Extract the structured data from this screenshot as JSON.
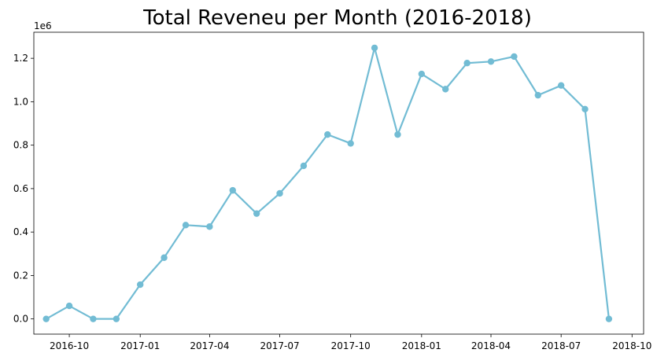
{
  "chart_data": {
    "type": "line",
    "title": "Total Reveneu per Month (2016-2018)",
    "xlabel": "",
    "ylabel": "",
    "y_offset_label": "1e6",
    "x_axis_type": "date",
    "xlim": [
      "2016-08-16",
      "2018-10-16"
    ],
    "ylim": [
      -70000,
      1320000
    ],
    "x_ticks": [
      {
        "date": "2016-10-01",
        "label": "2016-10"
      },
      {
        "date": "2017-01-01",
        "label": "2017-01"
      },
      {
        "date": "2017-04-01",
        "label": "2017-04"
      },
      {
        "date": "2017-07-01",
        "label": "2017-07"
      },
      {
        "date": "2017-10-01",
        "label": "2017-10"
      },
      {
        "date": "2018-01-01",
        "label": "2018-01"
      },
      {
        "date": "2018-04-01",
        "label": "2018-04"
      },
      {
        "date": "2018-07-01",
        "label": "2018-07"
      },
      {
        "date": "2018-10-01",
        "label": "2018-10"
      }
    ],
    "y_ticks": [
      {
        "value": 0,
        "label": "0.0"
      },
      {
        "value": 200000,
        "label": "0.2"
      },
      {
        "value": 400000,
        "label": "0.4"
      },
      {
        "value": 600000,
        "label": "0.6"
      },
      {
        "value": 800000,
        "label": "0.8"
      },
      {
        "value": 1000000,
        "label": "1.0"
      },
      {
        "value": 1200000,
        "label": "1.2"
      }
    ],
    "grid": false,
    "series": [
      {
        "color": "#72bcd4",
        "marker": "circle",
        "points": [
          {
            "x": "2016-09-01",
            "y": 0
          },
          {
            "x": "2016-10-01",
            "y": 60000
          },
          {
            "x": "2016-11-01",
            "y": 0
          },
          {
            "x": "2016-12-01",
            "y": 0
          },
          {
            "x": "2017-01-01",
            "y": 158000
          },
          {
            "x": "2017-02-01",
            "y": 282000
          },
          {
            "x": "2017-03-01",
            "y": 432000
          },
          {
            "x": "2017-04-01",
            "y": 425000
          },
          {
            "x": "2017-05-01",
            "y": 592000
          },
          {
            "x": "2017-06-01",
            "y": 485000
          },
          {
            "x": "2017-07-01",
            "y": 578000
          },
          {
            "x": "2017-08-01",
            "y": 705000
          },
          {
            "x": "2017-09-01",
            "y": 849000
          },
          {
            "x": "2017-10-01",
            "y": 808000
          },
          {
            "x": "2017-11-01",
            "y": 1248000
          },
          {
            "x": "2017-12-01",
            "y": 849000
          },
          {
            "x": "2018-01-01",
            "y": 1128000
          },
          {
            "x": "2018-02-01",
            "y": 1058000
          },
          {
            "x": "2018-03-01",
            "y": 1178000
          },
          {
            "x": "2018-04-01",
            "y": 1185000
          },
          {
            "x": "2018-05-01",
            "y": 1208000
          },
          {
            "x": "2018-06-01",
            "y": 1030000
          },
          {
            "x": "2018-07-01",
            "y": 1075000
          },
          {
            "x": "2018-08-01",
            "y": 966000
          },
          {
            "x": "2018-09-01",
            "y": 0
          }
        ]
      }
    ]
  }
}
